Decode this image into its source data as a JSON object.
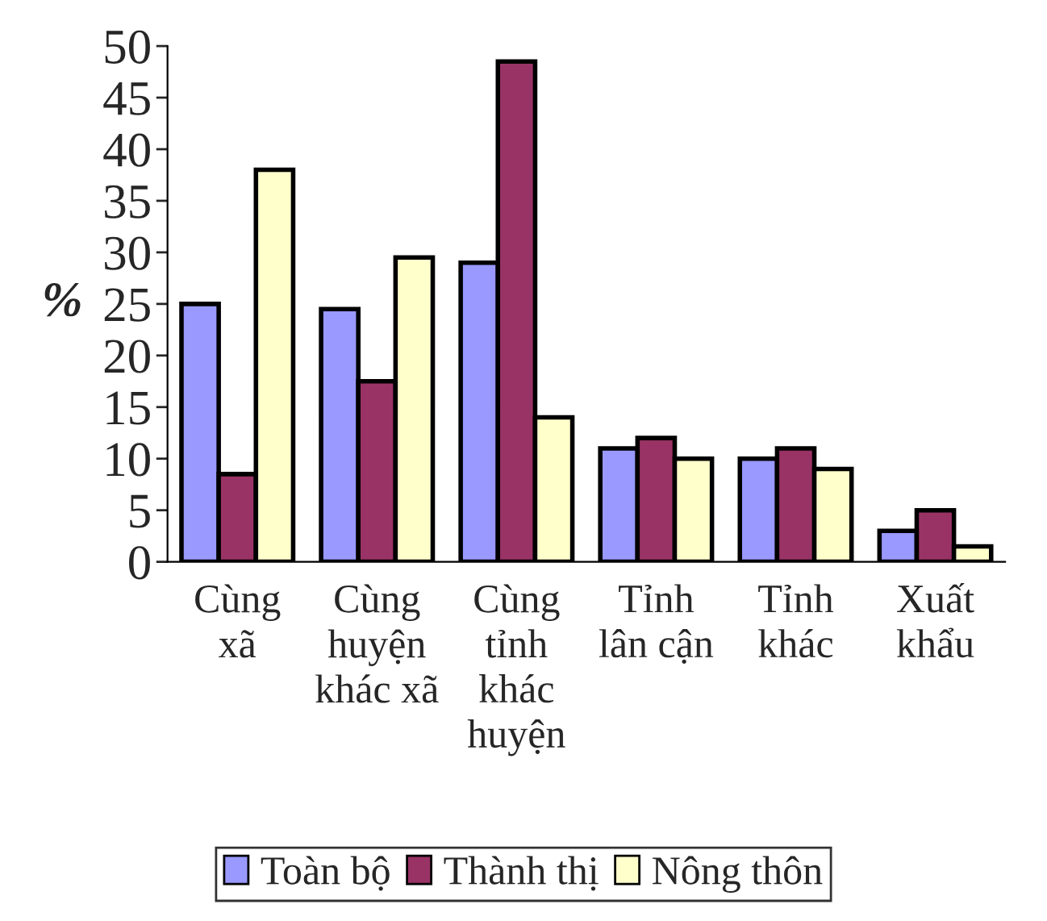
{
  "chart_data": {
    "type": "bar",
    "ylabel": "%",
    "categories": [
      "Cùng\nxã",
      "Cùng\nhuyện\nkhác xã",
      "Cùng\ntỉnh\nkhác\nhuyện",
      "Tỉnh\nlân cận",
      "Tỉnh\nkhác",
      "Xuất\nkhẩu"
    ],
    "series": [
      {
        "name": "Toàn bộ",
        "color": "#9999ff",
        "values": [
          25,
          24.5,
          29,
          11,
          10,
          3
        ]
      },
      {
        "name": "Thành thị",
        "color": "#993366",
        "values": [
          8.5,
          17.5,
          48.5,
          12,
          11,
          5
        ]
      },
      {
        "name": "Nông thôn",
        "color": "#ffffcc",
        "values": [
          38,
          29.5,
          14,
          10,
          9,
          1.5
        ]
      }
    ],
    "ylim": [
      0,
      50
    ],
    "yticks": [
      0,
      5,
      10,
      15,
      20,
      25,
      30,
      35,
      40,
      45,
      50
    ],
    "grid": false,
    "legend": "bottom"
  }
}
